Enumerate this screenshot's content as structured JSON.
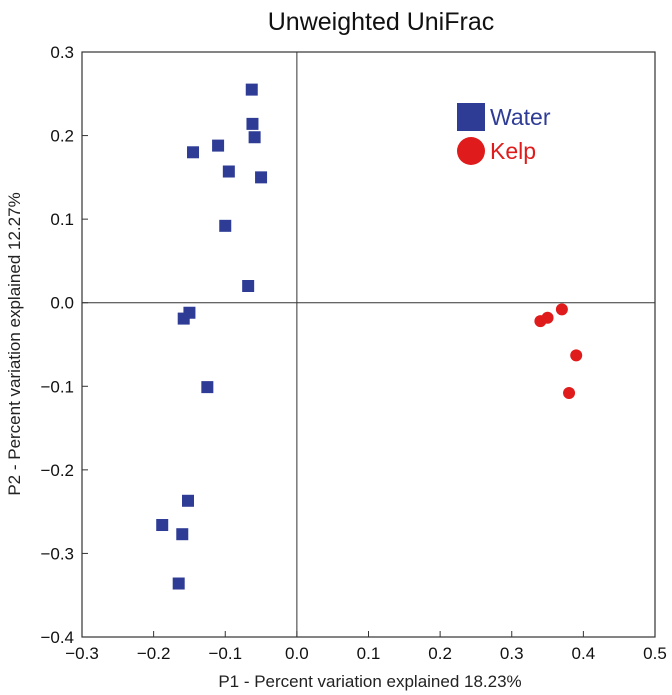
{
  "chart_data": {
    "type": "scatter",
    "title": "Unweighted UniFrac",
    "xlabel": "P1 - Percent variation explained 18.23%",
    "ylabel": "P2 - Percent variation explained 12.27%",
    "xlim": [
      -0.3,
      0.5
    ],
    "ylim": [
      -0.4,
      0.3
    ],
    "x_ticks": [
      "−0.3",
      "−0.2",
      "−0.1",
      "0.0",
      "0.1",
      "0.2",
      "0.3",
      "0.4",
      "0.5"
    ],
    "y_ticks": [
      "−0.4",
      "−0.3",
      "−0.2",
      "−0.1",
      "0.0",
      "0.1",
      "0.2",
      "0.3"
    ],
    "grid": false,
    "zero_lines": true,
    "legend_position": "top-right",
    "series": [
      {
        "name": "Water",
        "marker": "square",
        "color": "#2E3C96",
        "points": [
          {
            "x": -0.063,
            "y": 0.255
          },
          {
            "x": -0.062,
            "y": 0.214
          },
          {
            "x": -0.059,
            "y": 0.198
          },
          {
            "x": -0.11,
            "y": 0.188
          },
          {
            "x": -0.145,
            "y": 0.18
          },
          {
            "x": -0.095,
            "y": 0.157
          },
          {
            "x": -0.05,
            "y": 0.15
          },
          {
            "x": -0.1,
            "y": 0.092
          },
          {
            "x": -0.068,
            "y": 0.02
          },
          {
            "x": -0.15,
            "y": -0.012
          },
          {
            "x": -0.158,
            "y": -0.019
          },
          {
            "x": -0.125,
            "y": -0.101
          },
          {
            "x": -0.152,
            "y": -0.237
          },
          {
            "x": -0.188,
            "y": -0.266
          },
          {
            "x": -0.16,
            "y": -0.277
          },
          {
            "x": -0.165,
            "y": -0.336
          }
        ]
      },
      {
        "name": "Kelp",
        "marker": "circle",
        "color": "#E01B1B",
        "points": [
          {
            "x": 0.34,
            "y": -0.022
          },
          {
            "x": 0.35,
            "y": -0.018
          },
          {
            "x": 0.37,
            "y": -0.008
          },
          {
            "x": 0.39,
            "y": -0.063
          },
          {
            "x": 0.38,
            "y": -0.108
          }
        ]
      }
    ]
  }
}
